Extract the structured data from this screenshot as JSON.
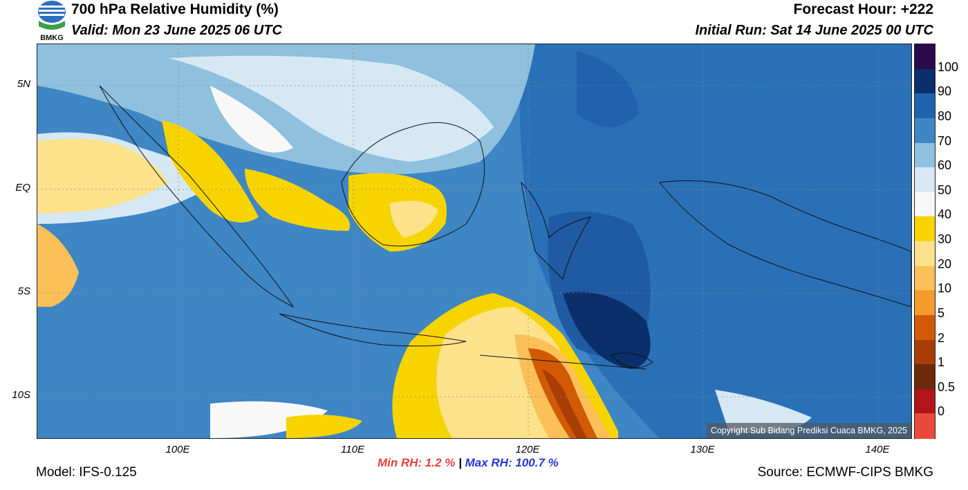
{
  "header": {
    "title": "700 hPa Relative Humidity (%)",
    "valid": "Valid: Mon 23 June 2025 06 UTC",
    "forecast_hour": "Forecast Hour: +222",
    "initial_run": "Initial Run: Sat 14 June 2025 00 UTC",
    "logo_text": "BMKG"
  },
  "map": {
    "lat_labels": [
      "5N",
      "EQ",
      "5S",
      "10S"
    ],
    "lon_labels": [
      "100E",
      "110E",
      "120E",
      "130E",
      "140E"
    ],
    "copyright": "Copyright Sub Bidang Prediksi Cuaca BMKG, 2025"
  },
  "colorbar": {
    "labels": [
      "100",
      "90",
      "80",
      "70",
      "60",
      "50",
      "40",
      "30",
      "20",
      "10",
      "5",
      "2",
      "1",
      "0.5",
      "0"
    ],
    "colors": [
      "#2a0a4a",
      "#0b2f6b",
      "#1f63ae",
      "#3e86c4",
      "#8fc0de",
      "#d6e8f3",
      "#f8f8f8",
      "#f7d400",
      "#fde28c",
      "#fbc057",
      "#f49b2b",
      "#d35a05",
      "#a83d06",
      "#6b2a0c",
      "#b1141b",
      "#e94a3b"
    ]
  },
  "stats": {
    "min_rh": "Min RH:   1.2 %",
    "separator": "|",
    "max_rh": "Max RH: 100.7 %"
  },
  "footer": {
    "model": "Model: IFS-0.125",
    "source": "Source: ECMWF-CIPS BMKG"
  }
}
